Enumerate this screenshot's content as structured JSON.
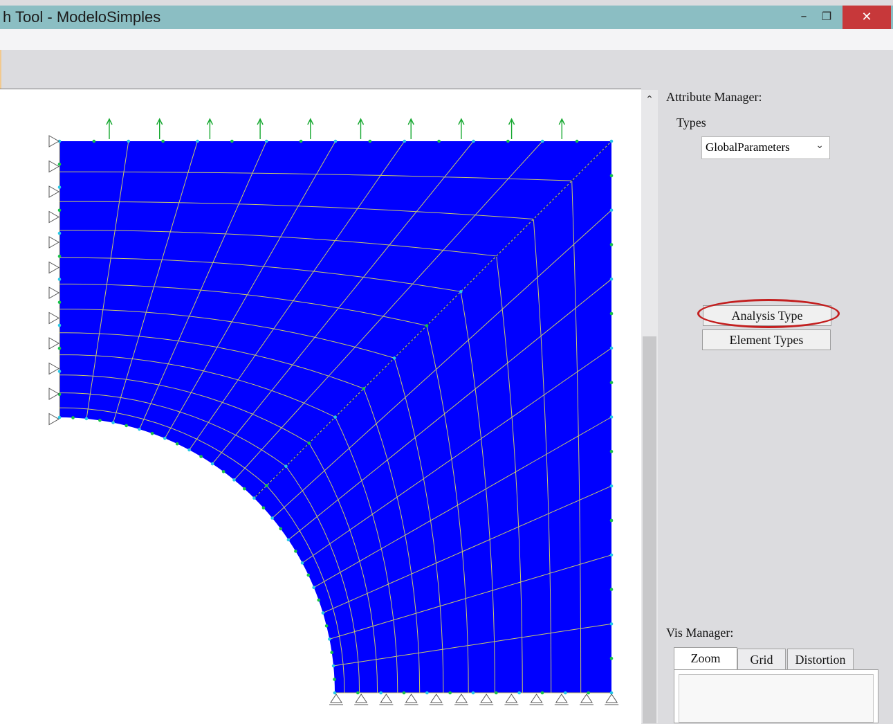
{
  "window": {
    "title": "h Tool - ModeloSimples",
    "minimize_glyph": "–",
    "maximize_glyph": "❐",
    "close_glyph": "✕"
  },
  "canvas": {
    "mesh_color": "#0000ff",
    "line_color": "#c9c96a",
    "node_color_green": "#19c24a",
    "node_color_cyan": "#28c8e6",
    "arrow_color": "#16a830"
  },
  "scroll": {
    "up_glyph": "⌃"
  },
  "attribute_manager": {
    "title": "Attribute Manager:",
    "types_label": "Types",
    "select_value": "GlobalParameters",
    "select_icon": "chevron-down",
    "analysis_type_label": "Analysis Type",
    "element_types_label": "Element Types",
    "highlight_color": "#c31f1f"
  },
  "vis_manager": {
    "title": "Vis Manager:",
    "tabs": [
      "Zoom",
      "Grid",
      "Distortion"
    ]
  }
}
